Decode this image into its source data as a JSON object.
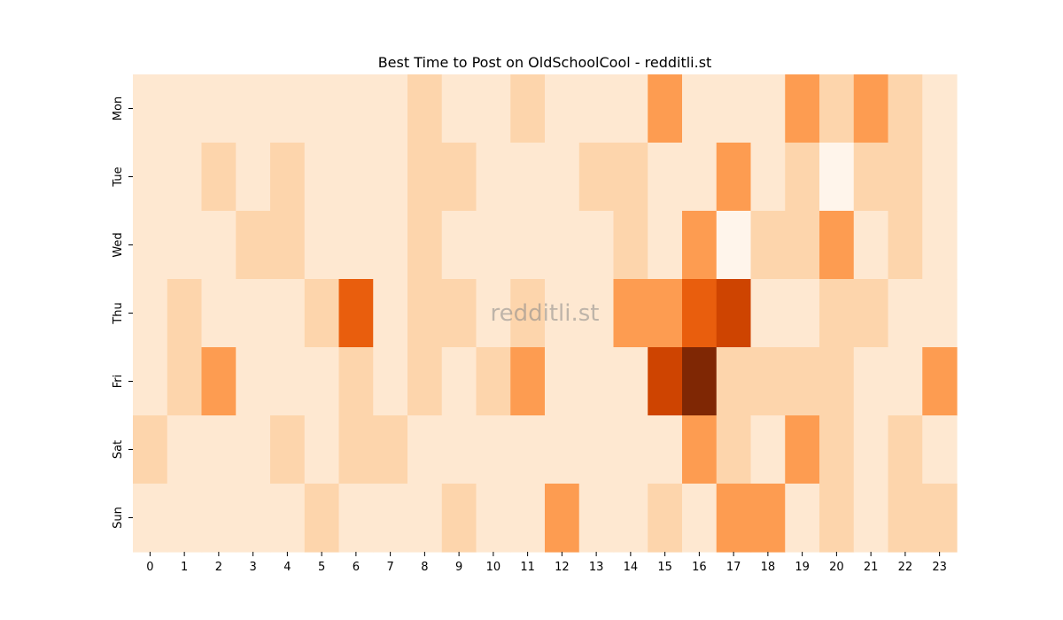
{
  "chart_data": {
    "type": "heatmap",
    "title": "Best Time to Post on OldSchoolCool - redditli.st",
    "watermark": "redditli.st",
    "x_categories": [
      "0",
      "1",
      "2",
      "3",
      "4",
      "5",
      "6",
      "7",
      "8",
      "9",
      "10",
      "11",
      "12",
      "13",
      "14",
      "15",
      "16",
      "17",
      "18",
      "19",
      "20",
      "21",
      "22",
      "23"
    ],
    "y_categories": [
      "Mon",
      "Tue",
      "Wed",
      "Thu",
      "Fri",
      "Sat",
      "Sun"
    ],
    "values": [
      [
        0,
        0,
        0,
        0,
        0,
        0,
        0,
        0,
        1,
        0,
        0,
        1,
        0,
        0,
        0,
        3,
        0,
        0,
        0,
        3,
        1,
        3,
        1,
        0
      ],
      [
        0,
        0,
        1,
        0,
        1,
        0,
        0,
        0,
        1,
        1,
        0,
        0,
        0,
        1,
        1,
        0,
        0,
        3,
        0,
        1,
        -1,
        1,
        1,
        0
      ],
      [
        0,
        0,
        0,
        1,
        1,
        0,
        0,
        0,
        1,
        0,
        0,
        0,
        0,
        0,
        1,
        0,
        3,
        -1,
        1,
        1,
        3,
        0,
        1,
        0
      ],
      [
        0,
        1,
        0,
        0,
        0,
        1,
        5,
        0,
        1,
        1,
        0,
        1,
        0,
        0,
        3,
        3,
        5,
        6,
        0,
        0,
        1,
        1,
        0,
        0
      ],
      [
        0,
        1,
        3,
        0,
        0,
        0,
        1,
        0,
        1,
        0,
        1,
        3,
        0,
        0,
        0,
        6,
        8,
        1,
        1,
        1,
        1,
        0,
        0,
        3
      ],
      [
        1,
        0,
        0,
        0,
        1,
        0,
        1,
        1,
        0,
        0,
        0,
        0,
        0,
        0,
        0,
        0,
        3,
        1,
        0,
        3,
        1,
        0,
        1,
        0
      ],
      [
        0,
        0,
        0,
        0,
        0,
        1,
        0,
        0,
        0,
        1,
        0,
        0,
        3,
        0,
        0,
        1,
        0,
        3,
        3,
        0,
        1,
        0,
        1,
        1
      ]
    ],
    "colormap": "Oranges",
    "vmin": -1,
    "vmax": 8,
    "colorbar": false,
    "grid": false
  }
}
